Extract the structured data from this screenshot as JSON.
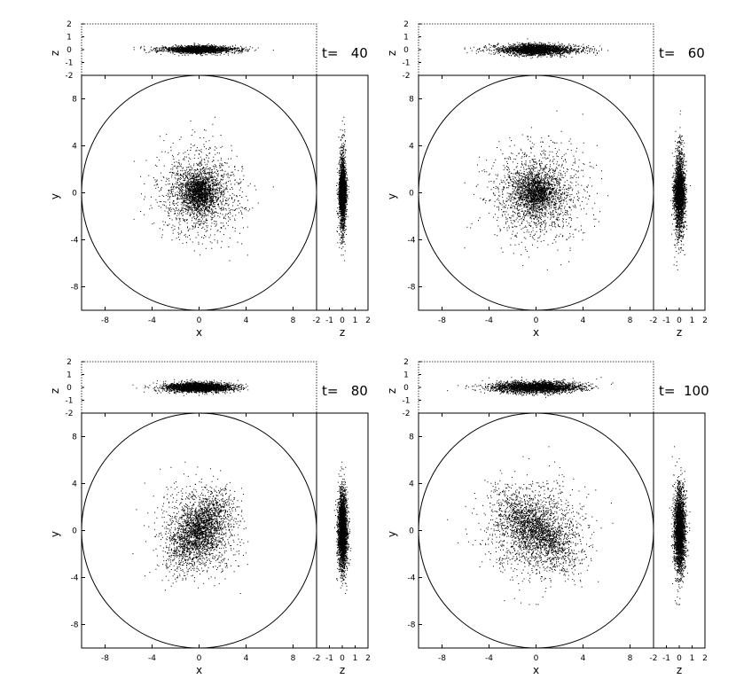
{
  "chart_data": [
    {
      "type": "scatter",
      "time_label": "t=   40",
      "panels": {
        "xz": {
          "xlabel": "",
          "ylabel": "z",
          "xlim": [
            -10,
            10
          ],
          "ylim": [
            -2,
            2
          ],
          "yticks": [
            "-2",
            "-1",
            "0",
            "1",
            "2"
          ]
        },
        "xy": {
          "xlabel": "x",
          "ylabel": "y",
          "xlim": [
            -10,
            10
          ],
          "ylim": [
            -10,
            10
          ],
          "xticks": [
            "-8",
            "-4",
            "0",
            "4",
            "8"
          ],
          "yticks": [
            "-8",
            "-4",
            "0",
            "4",
            "8"
          ]
        },
        "zy": {
          "xlabel": "z",
          "ylabel": "",
          "xlim": [
            -2,
            2
          ],
          "ylim": [
            -10,
            10
          ],
          "xticks": [
            "-2",
            "-1",
            "0",
            "1",
            "2"
          ]
        }
      },
      "boundary_circle_radius": 10,
      "distribution": {
        "n_points": 2800,
        "sigma_x": 1.7,
        "sigma_y": 1.7,
        "core_fraction": 0.4,
        "core_sigma": 0.7,
        "bar_angle_deg": 0,
        "bar_elongation": 1.0,
        "z_sigma": 0.12,
        "rotation_deg": 0
      }
    },
    {
      "type": "scatter",
      "time_label": "t=   60",
      "panels": {
        "xz": {
          "xlabel": "",
          "ylabel": "z",
          "xlim": [
            -10,
            10
          ],
          "ylim": [
            -2,
            2
          ],
          "yticks": [
            "-2",
            "-1",
            "0",
            "1",
            "2"
          ]
        },
        "xy": {
          "xlabel": "x",
          "ylabel": "y",
          "xlim": [
            -10,
            10
          ],
          "ylim": [
            -10,
            10
          ],
          "xticks": [
            "-8",
            "-4",
            "0",
            "4",
            "8"
          ],
          "yticks": [
            "-8",
            "-4",
            "0",
            "4",
            "8"
          ]
        },
        "zy": {
          "xlabel": "z",
          "ylabel": "",
          "xlim": [
            -2,
            2
          ],
          "ylim": [
            -10,
            10
          ],
          "xticks": [
            "-2",
            "-1",
            "0",
            "1",
            "2"
          ]
        }
      },
      "boundary_circle_radius": 10,
      "distribution": {
        "n_points": 2800,
        "sigma_x": 1.9,
        "sigma_y": 1.9,
        "core_fraction": 0.4,
        "core_sigma": 0.8,
        "bar_angle_deg": 0,
        "bar_elongation": 1.0,
        "z_sigma": 0.18,
        "rotation_deg": 0
      }
    },
    {
      "type": "scatter",
      "time_label": "t=   80",
      "panels": {
        "xz": {
          "xlabel": "",
          "ylabel": "z",
          "xlim": [
            -10,
            10
          ],
          "ylim": [
            -2,
            2
          ],
          "yticks": [
            "-2",
            "-1",
            "0",
            "1",
            "2"
          ]
        },
        "xy": {
          "xlabel": "x",
          "ylabel": "y",
          "xlim": [
            -10,
            10
          ],
          "ylim": [
            -10,
            10
          ],
          "xticks": [
            "-8",
            "-4",
            "0",
            "4",
            "8"
          ],
          "yticks": [
            "-8",
            "-4",
            "0",
            "4",
            "8"
          ]
        },
        "zy": {
          "xlabel": "z",
          "ylabel": "",
          "xlim": [
            -2,
            2
          ],
          "ylim": [
            -10,
            10
          ],
          "xticks": [
            "-2",
            "-1",
            "0",
            "1",
            "2"
          ]
        }
      },
      "boundary_circle_radius": 10,
      "distribution": {
        "n_points": 2800,
        "sigma_x": 1.6,
        "sigma_y": 1.8,
        "core_fraction": 0.5,
        "core_sigma": 0.8,
        "bar_angle_deg": 55,
        "bar_elongation": 2.2,
        "z_sigma": 0.16,
        "rotation_deg": 0
      }
    },
    {
      "type": "scatter",
      "time_label": "t=  100",
      "panels": {
        "xz": {
          "xlabel": "",
          "ylabel": "z",
          "xlim": [
            -10,
            10
          ],
          "ylim": [
            -2,
            2
          ],
          "yticks": [
            "-2",
            "-1",
            "0",
            "1",
            "2"
          ]
        },
        "xy": {
          "xlabel": "x",
          "ylabel": "y",
          "xlim": [
            -10,
            10
          ],
          "ylim": [
            -10,
            10
          ],
          "xticks": [
            "-8",
            "-4",
            "0",
            "4",
            "8"
          ],
          "yticks": [
            "-8",
            "-4",
            "0",
            "4",
            "8"
          ]
        },
        "zy": {
          "xlabel": "z",
          "ylabel": "",
          "xlim": [
            -2,
            2
          ],
          "ylim": [
            -10,
            10
          ],
          "xticks": [
            "-2",
            "-1",
            "0",
            "1",
            "2"
          ]
        }
      },
      "boundary_circle_radius": 10,
      "distribution": {
        "n_points": 2800,
        "sigma_x": 2.0,
        "sigma_y": 2.0,
        "core_fraction": 0.5,
        "core_sigma": 0.9,
        "bar_angle_deg": -40,
        "bar_elongation": 2.2,
        "z_sigma": 0.2,
        "rotation_deg": 0
      }
    }
  ]
}
